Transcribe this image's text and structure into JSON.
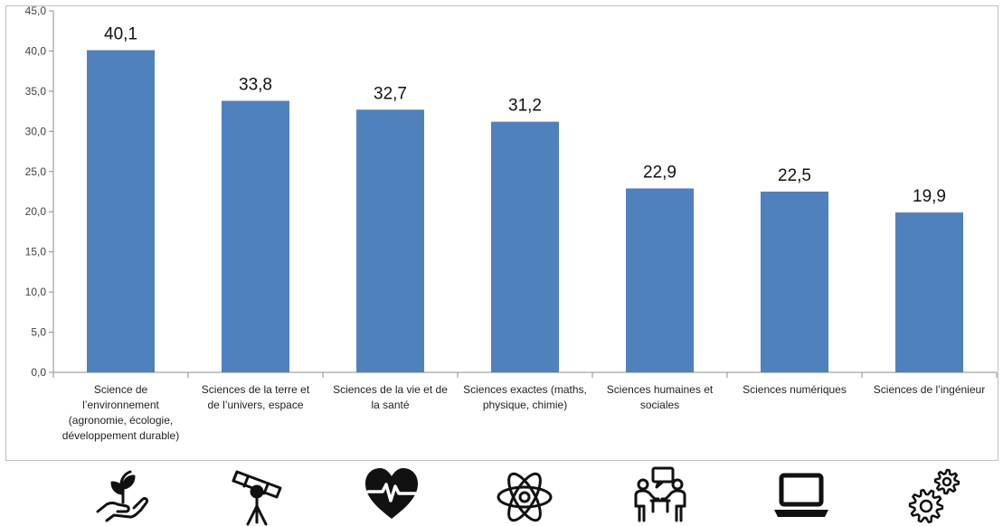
{
  "chart_data": {
    "type": "bar",
    "categories": [
      [
        "Science de",
        "l’environnement",
        "(agronomie, écologie,",
        "développement durable)"
      ],
      [
        "Sciences de la terre et",
        "de l’univers, espace"
      ],
      [
        "Sciences de la vie et de",
        "la santé"
      ],
      [
        "Sciences exactes (maths,",
        "physique, chimie)"
      ],
      [
        "Sciences humaines et",
        "sociales"
      ],
      [
        "Sciences numériques"
      ],
      [
        "Sciences de l’ingénieur"
      ]
    ],
    "values": [
      40.1,
      33.8,
      32.7,
      31.2,
      22.9,
      22.5,
      19.9
    ],
    "data_labels": [
      "40,1",
      "33,8",
      "32,7",
      "31,2",
      "22,9",
      "22,5",
      "19,9"
    ],
    "y_ticks": [
      "0,0",
      "5,0",
      "10,0",
      "15,0",
      "20,0",
      "25,0",
      "30,0",
      "35,0",
      "40,0",
      "45,0"
    ],
    "ylim": [
      0,
      45
    ],
    "grid": false,
    "bar_color": "#4f81bd"
  },
  "icons": [
    "plant-in-hand-icon",
    "telescope-icon",
    "heartbeat-icon",
    "atom-icon",
    "people-discussion-icon",
    "laptop-icon",
    "gears-icon"
  ]
}
